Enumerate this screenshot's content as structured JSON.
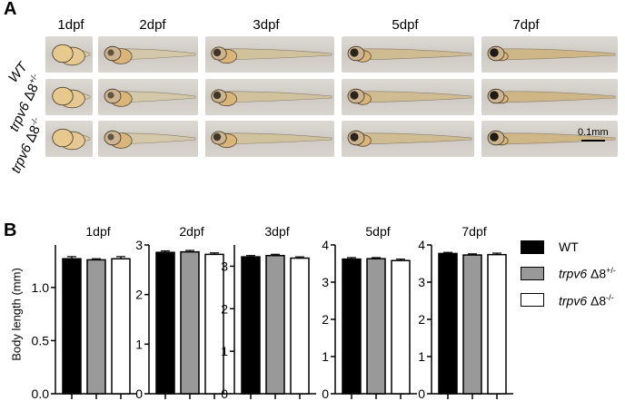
{
  "panel_a": {
    "letter": "A",
    "stages": [
      "1dpf",
      "2dpf",
      "3dpf",
      "5dpf",
      "7dpf"
    ],
    "rows": [
      {
        "gene": "WT",
        "suffix": ""
      },
      {
        "gene": "trpv6",
        "suffix": " Δ8",
        "sup": "+/-"
      },
      {
        "gene": "trpv6",
        "suffix": " Δ8",
        "sup": "-/-"
      }
    ],
    "scale_bar": "0.1mm"
  },
  "panel_b": {
    "letter": "B",
    "ylabel": "Body length (mm)",
    "legend": [
      {
        "gene": "WT",
        "suffix": "",
        "sup": "",
        "color": "#000000"
      },
      {
        "gene": "trpv6",
        "suffix": " Δ8",
        "sup": "+/-",
        "color": "#999999"
      },
      {
        "gene": "trpv6",
        "suffix": " Δ8",
        "sup": "-/-",
        "color": "#ffffff"
      }
    ]
  },
  "chart_data": [
    {
      "type": "bar",
      "title": "1dpf",
      "categories": [
        "WT",
        "trpv6 Δ8+/-",
        "trpv6 Δ8-/-"
      ],
      "values": [
        1.27,
        1.26,
        1.27
      ],
      "errors": [
        0.02,
        0.01,
        0.02
      ],
      "ylim": [
        0,
        1.4
      ],
      "yticks": [
        0.0,
        0.5,
        1.0
      ],
      "ytick_labels": [
        "0.0",
        "0.5",
        "1.0"
      ]
    },
    {
      "type": "bar",
      "title": "2dpf",
      "categories": [
        "WT",
        "trpv6 Δ8+/-",
        "trpv6 Δ8-/-"
      ],
      "values": [
        2.85,
        2.86,
        2.81
      ],
      "errors": [
        0.03,
        0.03,
        0.03
      ],
      "ylim": [
        0,
        3
      ],
      "yticks": [
        0,
        1,
        2,
        3
      ],
      "ytick_labels": [
        "0",
        "1",
        "2",
        "3"
      ]
    },
    {
      "type": "bar",
      "title": "3dpf",
      "categories": [
        "WT",
        "trpv6 Δ8+/-",
        "trpv6 Δ8-/-"
      ],
      "values": [
        3.22,
        3.25,
        3.19
      ],
      "errors": [
        0.03,
        0.03,
        0.03
      ],
      "ylim": [
        0,
        3.5
      ],
      "yticks": [
        0,
        1,
        2,
        3
      ],
      "ytick_labels": [
        "0",
        "1",
        "2",
        "3"
      ]
    },
    {
      "type": "bar",
      "title": "5dpf",
      "categories": [
        "WT",
        "trpv6 Δ8+/-",
        "trpv6 Δ8-/-"
      ],
      "values": [
        3.62,
        3.63,
        3.58
      ],
      "errors": [
        0.04,
        0.03,
        0.04
      ],
      "ylim": [
        0,
        4
      ],
      "yticks": [
        0,
        1,
        2,
        3,
        4
      ],
      "ytick_labels": [
        "0",
        "1",
        "2",
        "3",
        "4"
      ]
    },
    {
      "type": "bar",
      "title": "7dpf",
      "categories": [
        "WT",
        "trpv6 Δ8+/-",
        "trpv6 Δ8-/-"
      ],
      "values": [
        3.77,
        3.73,
        3.74
      ],
      "errors": [
        0.03,
        0.03,
        0.04
      ],
      "ylim": [
        0,
        4
      ],
      "yticks": [
        0,
        1,
        2,
        3,
        4
      ],
      "ytick_labels": [
        "0",
        "1",
        "2",
        "3",
        "4"
      ]
    }
  ]
}
